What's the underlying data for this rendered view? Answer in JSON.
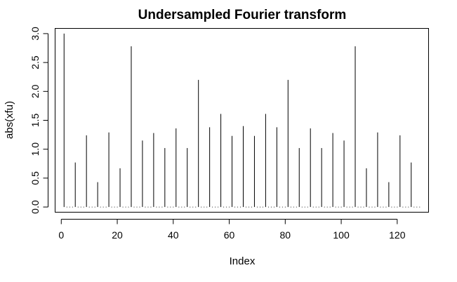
{
  "chart_data": {
    "type": "bar",
    "title": "Undersampled Fourier transform",
    "xlabel": "Index",
    "ylabel": "abs(xfu)",
    "xlim": [
      -2.2,
      131.2
    ],
    "ylim": [
      -0.09,
      3.09
    ],
    "x_ticks": [
      0,
      20,
      40,
      60,
      80,
      100,
      120
    ],
    "y_ticks": [
      0.0,
      0.5,
      1.0,
      1.5,
      2.0,
      2.5,
      3.0
    ],
    "x_tick_labels": [
      "0",
      "20",
      "40",
      "60",
      "80",
      "100",
      "120"
    ],
    "y_tick_labels": [
      "0.0",
      "0.5",
      "1.0",
      "1.5",
      "2.0",
      "2.5",
      "3.0"
    ],
    "style": "histogram-spikes",
    "n_points": 128,
    "grid": false,
    "spikes": [
      {
        "x": 1,
        "y": 3.0
      },
      {
        "x": 5,
        "y": 0.77
      },
      {
        "x": 9,
        "y": 1.24
      },
      {
        "x": 13,
        "y": 0.43
      },
      {
        "x": 17,
        "y": 1.29
      },
      {
        "x": 21,
        "y": 0.67
      },
      {
        "x": 25,
        "y": 2.78
      },
      {
        "x": 29,
        "y": 1.15
      },
      {
        "x": 33,
        "y": 1.28
      },
      {
        "x": 37,
        "y": 1.02
      },
      {
        "x": 41,
        "y": 1.36
      },
      {
        "x": 45,
        "y": 1.02
      },
      {
        "x": 49,
        "y": 2.2
      },
      {
        "x": 53,
        "y": 1.38
      },
      {
        "x": 57,
        "y": 1.61
      },
      {
        "x": 61,
        "y": 1.23
      },
      {
        "x": 65,
        "y": 1.4
      },
      {
        "x": 69,
        "y": 1.23
      },
      {
        "x": 73,
        "y": 1.61
      },
      {
        "x": 77,
        "y": 1.38
      },
      {
        "x": 81,
        "y": 2.2
      },
      {
        "x": 85,
        "y": 1.02
      },
      {
        "x": 89,
        "y": 1.36
      },
      {
        "x": 93,
        "y": 1.02
      },
      {
        "x": 97,
        "y": 1.28
      },
      {
        "x": 101,
        "y": 1.15
      },
      {
        "x": 105,
        "y": 2.78
      },
      {
        "x": 109,
        "y": 0.67
      },
      {
        "x": 113,
        "y": 1.29
      },
      {
        "x": 117,
        "y": 0.43
      },
      {
        "x": 121,
        "y": 1.24
      },
      {
        "x": 125,
        "y": 0.77
      }
    ]
  }
}
